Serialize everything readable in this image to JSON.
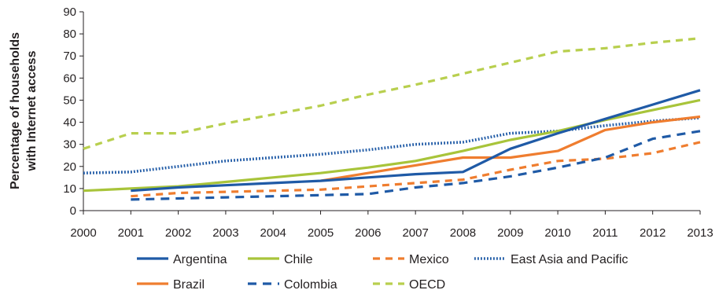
{
  "chart_data": {
    "type": "line",
    "title": "",
    "xlabel": "",
    "ylabel_lines": [
      "Percentage of households",
      "with Internet access"
    ],
    "x": [
      2000,
      2001,
      2002,
      2003,
      2004,
      2005,
      2006,
      2007,
      2008,
      2009,
      2010,
      2011,
      2012,
      2013
    ],
    "xlim": [
      2000,
      2013
    ],
    "ylim": [
      0,
      90
    ],
    "yticks": [
      0,
      10,
      20,
      30,
      40,
      50,
      60,
      70,
      80,
      90
    ],
    "grid": false,
    "legend_position": "bottom",
    "series": [
      {
        "name": "Argentina",
        "color": "#1f5aa6",
        "style": "solid",
        "points": [
          [
            2001,
            9
          ],
          [
            2002,
            10.5
          ],
          [
            2003,
            11.5
          ],
          [
            2004,
            12.5
          ],
          [
            2005,
            13.5
          ],
          [
            2006,
            15
          ],
          [
            2007,
            16.5
          ],
          [
            2008,
            17.5
          ],
          [
            2009,
            28
          ],
          [
            2010,
            35
          ],
          [
            2011,
            41.5
          ],
          [
            2012,
            48
          ],
          [
            2013,
            54.5
          ]
        ]
      },
      {
        "name": "Chile",
        "color": "#a8c43a",
        "style": "solid",
        "points": [
          [
            2000,
            9
          ],
          [
            2001,
            10
          ],
          [
            2002,
            11
          ],
          [
            2003,
            13
          ],
          [
            2004,
            15
          ],
          [
            2005,
            17
          ],
          [
            2006,
            19.5
          ],
          [
            2007,
            22.5
          ],
          [
            2008,
            27
          ],
          [
            2009,
            32
          ],
          [
            2010,
            36
          ],
          [
            2011,
            41
          ],
          [
            2012,
            45.5
          ],
          [
            2013,
            50
          ]
        ]
      },
      {
        "name": "Mexico",
        "color": "#ef7d2f",
        "style": "dashed",
        "points": [
          [
            2001,
            6.5
          ],
          [
            2002,
            8
          ],
          [
            2003,
            8.5
          ],
          [
            2004,
            9
          ],
          [
            2005,
            9.5
          ],
          [
            2006,
            11
          ],
          [
            2007,
            12.5
          ],
          [
            2008,
            14
          ],
          [
            2009,
            18.5
          ],
          [
            2010,
            22.5
          ],
          [
            2011,
            23.5
          ],
          [
            2012,
            26
          ],
          [
            2013,
            31
          ]
        ]
      },
      {
        "name": "East Asia and Pacific",
        "color": "#1f5aa6",
        "style": "dotted",
        "points": [
          [
            2000,
            17
          ],
          [
            2001,
            17.5
          ],
          [
            2002,
            20
          ],
          [
            2003,
            22.5
          ],
          [
            2004,
            24
          ],
          [
            2005,
            25.5
          ],
          [
            2006,
            27.5
          ],
          [
            2007,
            30
          ],
          [
            2008,
            31
          ],
          [
            2009,
            35
          ],
          [
            2010,
            36
          ],
          [
            2011,
            38.5
          ],
          [
            2012,
            40.5
          ],
          [
            2013,
            42
          ]
        ]
      },
      {
        "name": "Brazil",
        "color": "#ef7d2f",
        "style": "solid",
        "points": [
          [
            2005,
            13.5
          ],
          [
            2006,
            17
          ],
          [
            2007,
            20.5
          ],
          [
            2008,
            24
          ],
          [
            2009,
            24
          ],
          [
            2010,
            27
          ],
          [
            2011,
            36.5
          ],
          [
            2012,
            40
          ],
          [
            2013,
            42.5
          ]
        ]
      },
      {
        "name": "Colombia",
        "color": "#1f5aa6",
        "style": "longdash",
        "points": [
          [
            2001,
            5
          ],
          [
            2002,
            5.5
          ],
          [
            2003,
            6
          ],
          [
            2004,
            6.5
          ],
          [
            2005,
            7
          ],
          [
            2006,
            7.5
          ],
          [
            2007,
            10.5
          ],
          [
            2008,
            12.5
          ],
          [
            2009,
            15.5
          ],
          [
            2010,
            19.5
          ],
          [
            2011,
            24
          ],
          [
            2012,
            32.5
          ],
          [
            2013,
            36
          ]
        ]
      },
      {
        "name": "OECD",
        "color": "#b8cf4e",
        "style": "dashed",
        "points": [
          [
            2000,
            28
          ],
          [
            2001,
            35
          ],
          [
            2002,
            35
          ],
          [
            2003,
            39.5
          ],
          [
            2004,
            43.5
          ],
          [
            2005,
            47.5
          ],
          [
            2006,
            52.5
          ],
          [
            2007,
            57
          ],
          [
            2008,
            62
          ],
          [
            2009,
            67
          ],
          [
            2010,
            72
          ],
          [
            2011,
            73.5
          ],
          [
            2012,
            76
          ],
          [
            2013,
            78
          ]
        ]
      }
    ],
    "legend_rows": [
      [
        "Argentina",
        "Chile",
        "Mexico",
        "East Asia and Pacific"
      ],
      [
        "Brazil",
        "Colombia",
        "OECD"
      ]
    ]
  }
}
